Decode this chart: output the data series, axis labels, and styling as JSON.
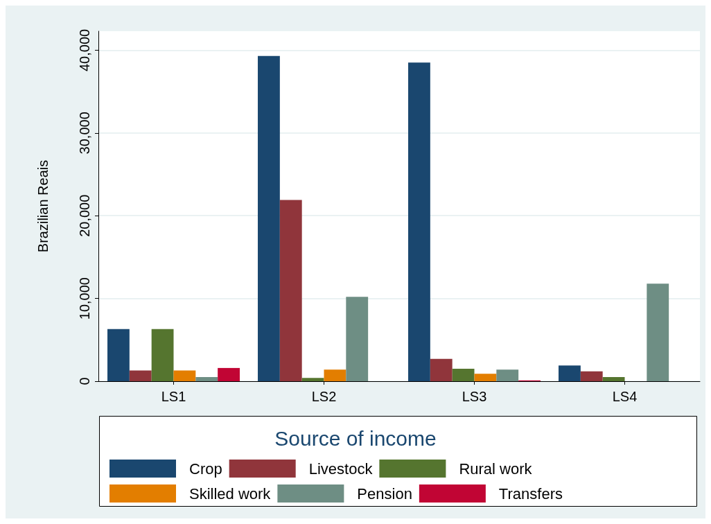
{
  "chart_data": {
    "type": "bar",
    "ylabel": "Brazilian Reais",
    "legend_title": "Source of income",
    "categories": [
      "LS1",
      "LS2",
      "LS3",
      "LS4"
    ],
    "series": [
      {
        "name": "Crop",
        "color": "#1a476f",
        "values": [
          6300,
          39300,
          38500,
          1900
        ]
      },
      {
        "name": "Livestock",
        "color": "#90353b",
        "values": [
          1300,
          21900,
          2700,
          1200
        ]
      },
      {
        "name": "Rural work",
        "color": "#55752f",
        "values": [
          6300,
          400,
          1500,
          500
        ]
      },
      {
        "name": "Skilled work",
        "color": "#e37e00",
        "values": [
          1300,
          1400,
          900,
          0
        ]
      },
      {
        "name": "Pension",
        "color": "#6e8e84",
        "values": [
          500,
          10200,
          1400,
          11800
        ]
      },
      {
        "name": "Transfers",
        "color": "#c10534",
        "values": [
          1600,
          0,
          100,
          0
        ]
      }
    ],
    "ylim": [
      0,
      42300
    ],
    "yticks": [
      {
        "value": 0,
        "label": "0"
      },
      {
        "value": 10000,
        "label": "10,000"
      },
      {
        "value": 20000,
        "label": "20,000"
      },
      {
        "value": 30000,
        "label": "30,000"
      },
      {
        "value": 40000,
        "label": "40,000"
      }
    ],
    "grid": "y",
    "legend": "bottom"
  }
}
